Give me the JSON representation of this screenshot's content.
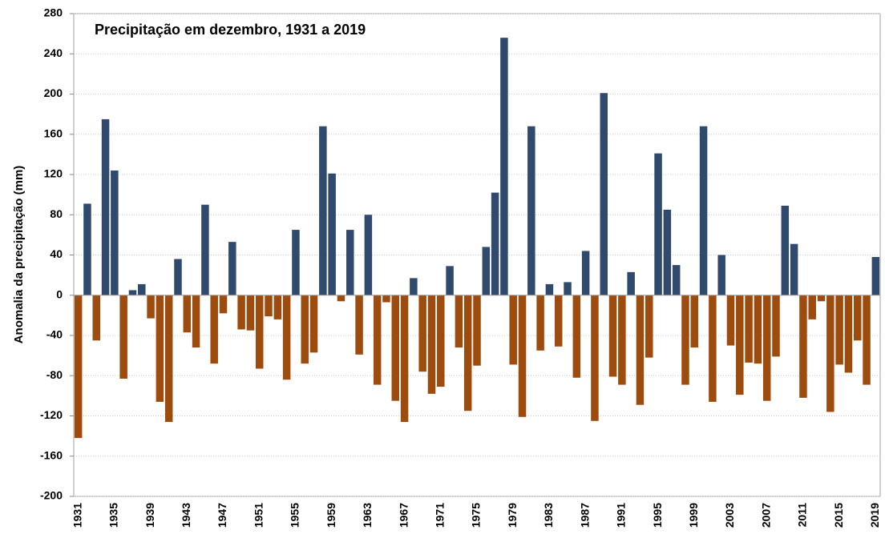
{
  "chart_data": {
    "type": "bar",
    "title": "Precipitação em dezembro, 1931 a 2019",
    "y_label": "Anomalia da precipitação (mm)",
    "categories": [
      "1931",
      null,
      null,
      null,
      "1935",
      null,
      null,
      null,
      "1939",
      null,
      null,
      null,
      "1943",
      null,
      null,
      null,
      "1947",
      null,
      null,
      null,
      "1951",
      null,
      null,
      null,
      "1955",
      null,
      null,
      null,
      "1959",
      null,
      null,
      null,
      "1963",
      null,
      null,
      null,
      "1967",
      null,
      null,
      null,
      "1971",
      null,
      null,
      null,
      "1975",
      null,
      null,
      null,
      "1979",
      null,
      null,
      null,
      "1983",
      null,
      null,
      null,
      "1987",
      null,
      null,
      null,
      "1991",
      null,
      null,
      null,
      "1995",
      null,
      null,
      null,
      "1999",
      null,
      null,
      null,
      "2003",
      null,
      null,
      null,
      "2007",
      null,
      null,
      null,
      "2011",
      null,
      null,
      null,
      "2015",
      null,
      null,
      null,
      "2019"
    ],
    "values": [
      -142,
      91,
      -45,
      175,
      124,
      -83,
      5,
      11,
      -23,
      -106,
      -126,
      36,
      -37,
      -52,
      90,
      -68,
      -18,
      53,
      -34,
      -35,
      -73,
      -21,
      -24,
      -84,
      65,
      -68,
      -57,
      168,
      121,
      -6,
      65,
      -59,
      80,
      -89,
      -7,
      -105,
      -126,
      17,
      -76,
      -98,
      -91,
      29,
      -52,
      -115,
      -70,
      48,
      102,
      256,
      -69,
      -121,
      168,
      -55,
      11,
      -51,
      13,
      -82,
      44,
      -125,
      201,
      -81,
      -89,
      23,
      -109,
      -62,
      141,
      85,
      30,
      -89,
      -52,
      168,
      -106,
      40,
      -50,
      -99,
      -67,
      -68,
      -105,
      -61,
      89,
      51,
      -102,
      -24,
      -6,
      -116,
      -69,
      -77,
      -45,
      -89,
      38
    ],
    "positive_color": "#2f4a6d",
    "negative_color": "#9e4b0e",
    "ylim": [
      -200,
      280
    ],
    "yticks": [
      -200,
      -160,
      -120,
      -80,
      -40,
      0,
      40,
      80,
      120,
      160,
      200,
      240,
      280
    ],
    "grid": true
  }
}
